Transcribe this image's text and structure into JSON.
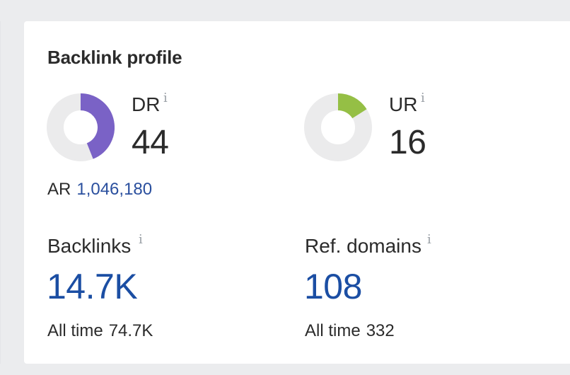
{
  "card": {
    "title": "Backlink profile"
  },
  "dr": {
    "label": "DR",
    "info_icon": "i",
    "value": "44",
    "ring_fraction": 0.44,
    "ring_color": "#7a62c6",
    "track_color": "#ebebec"
  },
  "ur": {
    "label": "UR",
    "info_icon": "i",
    "value": "16",
    "ring_fraction": 0.16,
    "ring_color": "#95bf45",
    "track_color": "#ebebec"
  },
  "ar": {
    "label": "AR",
    "value": "1,046,180"
  },
  "backlinks": {
    "label": "Backlinks",
    "info_icon": "i",
    "value": "14.7K",
    "sub_label": "All time",
    "sub_value": "74.7K"
  },
  "ref_domains": {
    "label": "Ref. domains",
    "info_icon": "i",
    "value": "108",
    "sub_label": "All time",
    "sub_value": "332"
  },
  "colors": {
    "link_blue": "#1b4ea3",
    "text": "#2b2b2b",
    "background": "#ebecee"
  }
}
